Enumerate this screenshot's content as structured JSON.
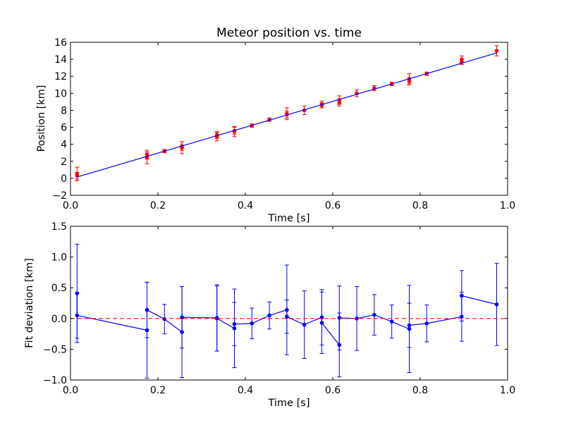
{
  "chart_data": [
    {
      "type": "scatter",
      "title": "Meteor position vs. time",
      "xlabel": "Time [s]",
      "ylabel": "Position [km]",
      "xlim": [
        0.0,
        1.0
      ],
      "ylim": [
        -2,
        16
      ],
      "xticks": [
        "0.0",
        "0.2",
        "0.4",
        "0.6",
        "0.8",
        "1.0"
      ],
      "yticks": [
        "−2",
        "0",
        "2",
        "4",
        "6",
        "8",
        "10",
        "12",
        "14",
        "16"
      ],
      "xtick_values": [
        0.0,
        0.2,
        0.4,
        0.6,
        0.8,
        1.0
      ],
      "ytick_values": [
        -2,
        0,
        2,
        4,
        6,
        8,
        10,
        12,
        14,
        16
      ],
      "grid": false,
      "series": [
        {
          "kind": "errorbar-points",
          "color": "#ff0000",
          "x": [
            0.015,
            0.015,
            0.175,
            0.175,
            0.215,
            0.255,
            0.255,
            0.335,
            0.335,
            0.375,
            0.375,
            0.415,
            0.455,
            0.495,
            0.495,
            0.535,
            0.575,
            0.575,
            0.615,
            0.615,
            0.655,
            0.695,
            0.735,
            0.775,
            0.775,
            0.815,
            0.895,
            0.895,
            0.975
          ],
          "y": [
            0.5,
            0.3,
            2.8,
            2.4,
            3.2,
            3.8,
            3.6,
            5.1,
            4.9,
            5.6,
            5.5,
            6.2,
            6.9,
            7.6,
            7.5,
            8.0,
            8.7,
            8.6,
            9.2,
            8.9,
            10.0,
            10.6,
            11.1,
            11.7,
            11.4,
            12.3,
            14.0,
            13.7,
            15.0
          ],
          "yerr": [
            0.8,
            0.4,
            0.5,
            0.7,
            0.2,
            0.5,
            0.7,
            0.4,
            0.5,
            0.4,
            0.6,
            0.2,
            0.2,
            0.7,
            0.4,
            0.5,
            0.4,
            0.3,
            0.5,
            0.4,
            0.4,
            0.3,
            0.2,
            0.6,
            0.4,
            0.2,
            0.4,
            0.3,
            0.6
          ]
        },
        {
          "kind": "fit-line",
          "color": "#0000ff",
          "x": [
            0.015,
            0.975
          ],
          "y": [
            0.15,
            14.75
          ]
        }
      ]
    },
    {
      "type": "line",
      "title": "",
      "xlabel": "Time [s]",
      "ylabel": "Fit deviation [km]",
      "xlim": [
        0.0,
        1.0
      ],
      "ylim": [
        -1.0,
        1.5
      ],
      "xticks": [
        "0.0",
        "0.2",
        "0.4",
        "0.6",
        "0.8",
        "1.0"
      ],
      "yticks": [
        "−1.0",
        "−0.5",
        "0.0",
        "0.5",
        "1.0",
        "1.5"
      ],
      "xtick_values": [
        0.0,
        0.2,
        0.4,
        0.6,
        0.8,
        1.0
      ],
      "ytick_values": [
        -1.0,
        -0.5,
        0.0,
        0.5,
        1.0,
        1.5
      ],
      "grid": false,
      "series": [
        {
          "kind": "errorbar-line",
          "color": "#0000ff",
          "x": [
            0.015,
            0.015,
            0.175,
            0.175,
            0.215,
            0.255,
            0.255,
            0.335,
            0.335,
            0.375,
            0.375,
            0.415,
            0.455,
            0.495,
            0.495,
            0.535,
            0.575,
            0.575,
            0.615,
            0.615,
            0.655,
            0.695,
            0.735,
            0.775,
            0.775,
            0.815,
            0.895,
            0.895,
            0.975
          ],
          "y": [
            0.41,
            0.05,
            -0.19,
            0.14,
            -0.01,
            -0.22,
            0.02,
            0.01,
            0.0,
            -0.16,
            -0.09,
            -0.08,
            0.05,
            0.14,
            0.03,
            -0.1,
            0.02,
            -0.07,
            -0.43,
            0.01,
            0.0,
            0.06,
            -0.05,
            -0.17,
            -0.11,
            -0.08,
            0.03,
            0.37,
            0.23
          ],
          "yerr": [
            0.8,
            0.37,
            0.78,
            0.45,
            0.24,
            0.74,
            0.5,
            0.54,
            0.53,
            0.64,
            0.35,
            0.25,
            0.22,
            0.73,
            0.27,
            0.55,
            0.45,
            0.5,
            0.52,
            0.52,
            0.52,
            0.33,
            0.27,
            0.71,
            0.36,
            0.3,
            0.4,
            0.41,
            0.67
          ]
        },
        {
          "kind": "zero-line",
          "color": "#ff0000",
          "style": "dashed",
          "y": 0.0
        }
      ]
    }
  ]
}
